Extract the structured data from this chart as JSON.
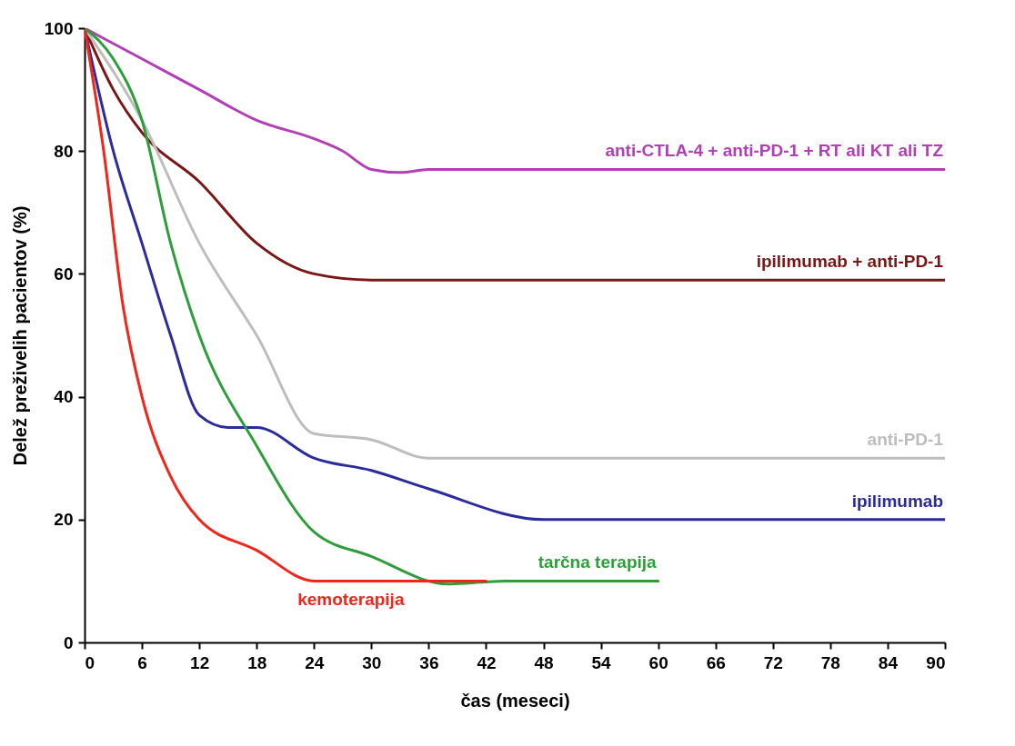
{
  "chart_data": {
    "type": "line",
    "xlabel": "čas (meseci)",
    "ylabel": "Delež preživelih pacientov (%)",
    "xlim": [
      0,
      90
    ],
    "xticks": [
      0,
      6,
      12,
      18,
      24,
      30,
      36,
      42,
      48,
      54,
      60,
      66,
      72,
      78,
      84,
      90
    ],
    "ylim": [
      0,
      100
    ],
    "yticks": [
      0,
      20,
      40,
      60,
      80,
      100
    ],
    "grid": false,
    "legend": false,
    "marker": "none",
    "line_style": "solid",
    "series": [
      {
        "name": "anti-CTLA-4 + anti-PD-1 + RT ali KT ali TZ",
        "color": "#b23fb5",
        "x": [
          0,
          6,
          12,
          18,
          24,
          27,
          30,
          33,
          36,
          48,
          90
        ],
        "values": [
          100,
          95,
          90,
          85,
          82,
          80,
          77,
          76.5,
          77,
          77,
          77
        ]
      },
      {
        "name": "ipilimumab + anti-PD-1",
        "color": "#7a1616",
        "x": [
          0,
          3,
          6,
          12,
          18,
          24,
          30,
          36,
          90
        ],
        "values": [
          100,
          90,
          83,
          75,
          65,
          60,
          59,
          59,
          59
        ]
      },
      {
        "name": "anti-PD-1",
        "color": "#bdbdbd",
        "x": [
          0,
          6,
          12,
          18,
          24,
          30,
          36,
          48,
          90
        ],
        "values": [
          100,
          85,
          65,
          50,
          34,
          33,
          30,
          30,
          30
        ]
      },
      {
        "name": "ipilimumab",
        "color": "#2b2b9e",
        "x": [
          0,
          3,
          6,
          9,
          12,
          15,
          18,
          24,
          30,
          36,
          48,
          90
        ],
        "values": [
          100,
          80,
          65,
          50,
          37,
          35,
          35,
          30,
          28,
          25,
          20,
          20
        ]
      },
      {
        "name": "tarčna terapija",
        "color": "#2e9e3a",
        "x": [
          0,
          3,
          6,
          9,
          12,
          18,
          24,
          30,
          38,
          44,
          60
        ],
        "values": [
          100,
          95,
          85,
          65,
          50,
          32,
          18,
          14,
          9.5,
          10,
          10
        ]
      },
      {
        "name": "kemoterapija",
        "color": "#f0261b",
        "x": [
          0,
          2,
          4,
          6,
          9,
          12,
          18,
          24,
          30,
          36,
          42
        ],
        "values": [
          100,
          80,
          55,
          40,
          27,
          20,
          15,
          10,
          10,
          10,
          10
        ]
      }
    ]
  }
}
